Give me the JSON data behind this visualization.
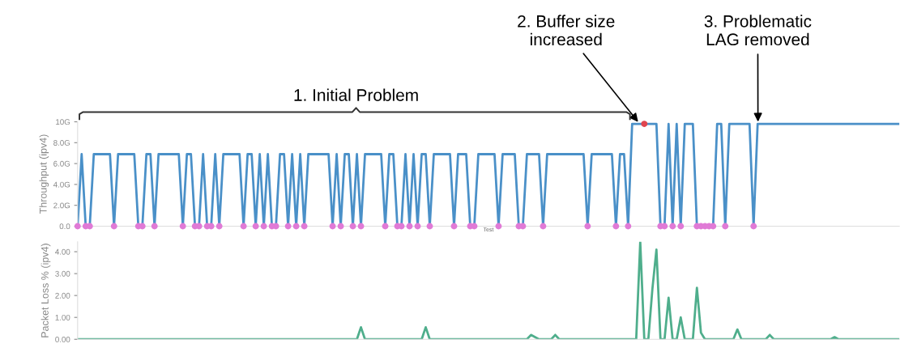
{
  "chart_data": [
    {
      "type": "line",
      "ylabel": "Throughput (ipv4)",
      "xlabel": "Test",
      "ylim": [
        0,
        10
      ],
      "tick_labels": "y",
      "legend": false,
      "yticks": [
        {
          "value": 0,
          "label": "0.0"
        },
        {
          "value": 2,
          "label": "2.0G"
        },
        {
          "value": 4,
          "label": "4.0G"
        },
        {
          "value": 6,
          "label": "6.0G"
        },
        {
          "value": 8,
          "label": "8.0G"
        },
        {
          "value": 10,
          "label": "10G"
        }
      ],
      "annotations": [
        "1. Initial Problem",
        "2. Buffer size\nincreased",
        "3. Problematic\nLAG removed"
      ],
      "categories": [
        null,
        null,
        null,
        null,
        null,
        null,
        null,
        null,
        null,
        null,
        null,
        null,
        null,
        null,
        null,
        null,
        null,
        null,
        null,
        null,
        null,
        null,
        null,
        null,
        null,
        null,
        null,
        null,
        null,
        null,
        null,
        null,
        null,
        null,
        null,
        null,
        null,
        null,
        null,
        null,
        null,
        null,
        null,
        null,
        null,
        null,
        null,
        null,
        null,
        null,
        null,
        null,
        null,
        null,
        null,
        null,
        null,
        null,
        null,
        null,
        null,
        null,
        null,
        null,
        null,
        null,
        null,
        null,
        null,
        null,
        null,
        null,
        null,
        null,
        null,
        null,
        null,
        null,
        null,
        null,
        null,
        null,
        null,
        null,
        null,
        null,
        null,
        null,
        null,
        null,
        null,
        null,
        null,
        null,
        null,
        null,
        null,
        null,
        null,
        null,
        null,
        null,
        null,
        null,
        null,
        null,
        null,
        null,
        null,
        null,
        null,
        null,
        null,
        null,
        null,
        null,
        null,
        null,
        null,
        null,
        null,
        null,
        null,
        null,
        null,
        null,
        null,
        null,
        null,
        null,
        null,
        null,
        null,
        null,
        null,
        null,
        null,
        null,
        null,
        null,
        null,
        null,
        null,
        null,
        null,
        null,
        null,
        null,
        null,
        null,
        null,
        null,
        null,
        null,
        null,
        null,
        null,
        null,
        null,
        null,
        null,
        null,
        null,
        null,
        null,
        null,
        null,
        null,
        null,
        null,
        null,
        null,
        null,
        null,
        null,
        null,
        null,
        null,
        null,
        null,
        null,
        null,
        null,
        null,
        null,
        null,
        null,
        null,
        null,
        null,
        null,
        null,
        null,
        null,
        null,
        null,
        null,
        null,
        null,
        null,
        null,
        null,
        null,
        null
      ],
      "series": [
        {
          "color": "#4a90c8",
          "values": [
            0,
            6.9,
            0,
            0,
            6.9,
            6.9,
            6.9,
            6.9,
            6.9,
            0,
            6.9,
            6.9,
            6.9,
            6.9,
            6.9,
            0,
            0,
            6.9,
            6.9,
            0,
            6.9,
            6.9,
            6.9,
            6.9,
            6.9,
            6.9,
            0,
            6.9,
            6.9,
            0,
            0,
            6.9,
            0,
            0,
            6.9,
            0,
            6.9,
            6.9,
            6.9,
            6.9,
            6.9,
            0,
            6.9,
            6.9,
            0,
            6.9,
            0,
            6.9,
            0,
            0,
            6.9,
            6.9,
            0,
            6.9,
            0,
            6.9,
            0,
            6.9,
            6.9,
            6.9,
            6.9,
            6.9,
            6.9,
            0,
            6.9,
            0,
            6.9,
            6.9,
            0,
            6.9,
            0,
            6.9,
            6.9,
            6.9,
            6.9,
            6.9,
            0,
            6.9,
            6.9,
            0,
            0,
            6.9,
            0,
            6.9,
            0,
            6.9,
            6.9,
            0,
            6.9,
            6.9,
            6.9,
            6.9,
            6.9,
            0,
            6.9,
            6.9,
            6.9,
            0,
            0,
            6.9,
            6.9,
            6.9,
            6.9,
            6.9,
            0,
            6.9,
            6.9,
            6.9,
            6.9,
            0,
            0,
            6.9,
            6.9,
            6.9,
            6.9,
            0,
            6.9,
            6.9,
            6.9,
            6.9,
            6.9,
            6.9,
            6.9,
            6.9,
            6.9,
            6.9,
            0,
            6.9,
            6.9,
            6.9,
            6.9,
            6.9,
            6.9,
            0,
            6.9,
            6.9,
            0,
            9.8,
            9.8,
            9.8,
            9.8,
            9.8,
            9.8,
            9.8,
            0,
            0,
            9.8,
            0,
            9.8,
            0,
            9.8,
            9.8,
            9.8,
            0,
            0,
            0,
            0,
            0,
            9.8,
            9.8,
            0,
            9.8,
            9.8,
            9.8,
            9.8,
            9.8,
            9.8,
            0,
            9.8,
            9.8,
            9.8,
            9.8,
            9.8,
            9.8,
            9.8,
            9.8,
            9.8,
            9.8,
            9.8,
            9.8,
            9.8,
            9.8,
            9.8,
            9.8,
            9.8,
            9.8,
            9.8,
            9.8,
            9.8,
            9.8,
            9.8,
            9.8,
            9.8,
            9.8,
            9.8,
            9.8,
            9.8,
            9.8,
            9.8,
            9.8,
            9.8,
            9.8,
            9.8,
            9.8
          ]
        },
        {
          "type": "scatter",
          "color": "#e07ad6",
          "marker": "circle",
          "values": [
            0,
            null,
            0,
            0,
            null,
            null,
            null,
            null,
            null,
            0,
            null,
            null,
            null,
            null,
            null,
            0,
            0,
            null,
            null,
            0,
            null,
            null,
            null,
            null,
            null,
            null,
            0,
            null,
            null,
            0,
            0,
            null,
            0,
            0,
            null,
            0,
            null,
            null,
            null,
            null,
            null,
            0,
            null,
            null,
            0,
            null,
            0,
            null,
            0,
            0,
            null,
            null,
            0,
            null,
            0,
            null,
            0,
            null,
            null,
            null,
            null,
            null,
            null,
            0,
            null,
            0,
            null,
            null,
            0,
            null,
            0,
            null,
            null,
            null,
            null,
            null,
            0,
            null,
            null,
            0,
            0,
            null,
            0,
            null,
            0,
            null,
            null,
            0,
            null,
            null,
            null,
            null,
            null,
            0,
            null,
            null,
            null,
            0,
            0,
            null,
            null,
            null,
            null,
            null,
            0,
            null,
            null,
            null,
            null,
            0,
            0,
            null,
            null,
            null,
            null,
            0,
            null,
            null,
            null,
            null,
            null,
            null,
            null,
            null,
            null,
            null,
            0,
            null,
            null,
            null,
            null,
            null,
            null,
            0,
            null,
            null,
            0,
            null,
            null,
            null,
            null,
            null,
            null,
            null,
            0,
            0,
            null,
            0,
            null,
            0,
            null,
            null,
            null,
            0,
            0,
            0,
            0,
            0,
            null,
            null,
            0,
            null,
            null,
            null,
            null,
            null,
            null,
            0,
            null,
            null,
            null,
            null,
            null,
            null,
            null,
            null,
            null,
            null,
            null,
            null,
            null,
            null,
            null,
            null,
            null,
            null,
            null,
            null,
            null,
            null,
            null,
            null,
            null,
            null,
            null,
            null,
            null,
            null,
            null,
            null,
            null,
            null,
            null,
            null
          ]
        },
        {
          "type": "scatter",
          "color": "#e0454f",
          "marker": "circle",
          "values": [
            null,
            null,
            null,
            null,
            null,
            null,
            null,
            null,
            null,
            null,
            null,
            null,
            null,
            null,
            null,
            null,
            null,
            null,
            null,
            null,
            null,
            null,
            null,
            null,
            null,
            null,
            null,
            null,
            null,
            null,
            null,
            null,
            null,
            null,
            null,
            null,
            null,
            null,
            null,
            null,
            null,
            null,
            null,
            null,
            null,
            null,
            null,
            null,
            null,
            null,
            null,
            null,
            null,
            null,
            null,
            null,
            null,
            null,
            null,
            null,
            null,
            null,
            null,
            null,
            null,
            null,
            null,
            null,
            null,
            null,
            null,
            null,
            null,
            null,
            null,
            null,
            null,
            null,
            null,
            null,
            null,
            null,
            null,
            null,
            null,
            null,
            null,
            null,
            null,
            null,
            null,
            null,
            null,
            null,
            null,
            null,
            null,
            null,
            null,
            null,
            null,
            null,
            null,
            null,
            null,
            null,
            null,
            null,
            null,
            null,
            null,
            null,
            null,
            null,
            null,
            null,
            null,
            null,
            null,
            null,
            null,
            null,
            null,
            null,
            null,
            null,
            null,
            null,
            null,
            null,
            null,
            null,
            null,
            null,
            null,
            null,
            null,
            null,
            null,
            null,
            9.8,
            null,
            null,
            null,
            null,
            null,
            null,
            null,
            null,
            null,
            null,
            null,
            null,
            null,
            null,
            null,
            null,
            null,
            null,
            null,
            null,
            null,
            null,
            null,
            null,
            null,
            null,
            null,
            null,
            null,
            null,
            null,
            null,
            null,
            null,
            null,
            null,
            null,
            null,
            null,
            null,
            null,
            null,
            null,
            null,
            null,
            null,
            null,
            null,
            null,
            null,
            null,
            null,
            null,
            null,
            null,
            null,
            null,
            null,
            null,
            null,
            null,
            null,
            null
          ]
        }
      ]
    },
    {
      "type": "line",
      "ylabel": "Packet Loss % (ipv4)",
      "ylim": [
        0,
        4.45
      ],
      "tick_labels": "y",
      "legend": false,
      "yticks": [
        {
          "value": 0,
          "label": "0.00"
        },
        {
          "value": 1,
          "label": "1.00"
        },
        {
          "value": 2,
          "label": "2.00"
        },
        {
          "value": 3,
          "label": "3.00"
        },
        {
          "value": 4,
          "label": "4.00"
        }
      ],
      "categories": [
        null,
        null,
        null,
        null,
        null,
        null,
        null,
        null,
        null,
        null,
        null,
        null,
        null,
        null,
        null,
        null,
        null,
        null,
        null,
        null,
        null,
        null,
        null,
        null,
        null,
        null,
        null,
        null,
        null,
        null,
        null,
        null,
        null,
        null,
        null,
        null,
        null,
        null,
        null,
        null,
        null,
        null,
        null,
        null,
        null,
        null,
        null,
        null,
        null,
        null,
        null,
        null,
        null,
        null,
        null,
        null,
        null,
        null,
        null,
        null,
        null,
        null,
        null,
        null,
        null,
        null,
        null,
        null,
        null,
        null,
        null,
        null,
        null,
        null,
        null,
        null,
        null,
        null,
        null,
        null,
        null,
        null,
        null,
        null,
        null,
        null,
        null,
        null,
        null,
        null,
        null,
        null,
        null,
        null,
        null,
        null,
        null,
        null,
        null,
        null,
        null,
        null,
        null,
        null,
        null,
        null,
        null,
        null,
        null,
        null,
        null,
        null,
        null,
        null,
        null,
        null,
        null,
        null,
        null,
        null,
        null,
        null,
        null,
        null,
        null,
        null,
        null,
        null,
        null,
        null,
        null,
        null,
        null,
        null,
        null,
        null,
        null,
        null,
        null,
        null,
        null,
        null,
        null,
        null,
        null,
        null,
        null,
        null,
        null,
        null,
        null,
        null,
        null,
        null,
        null,
        null,
        null,
        null,
        null,
        null,
        null,
        null,
        null,
        null,
        null,
        null,
        null,
        null,
        null,
        null,
        null,
        null,
        null,
        null,
        null,
        null,
        null,
        null,
        null,
        null,
        null,
        null,
        null,
        null,
        null,
        null,
        null,
        null,
        null,
        null,
        null,
        null,
        null,
        null,
        null,
        null,
        null,
        null,
        null,
        null,
        null,
        null,
        null,
        null
      ],
      "series": [
        {
          "color": "#4fae8c",
          "values": [
            0,
            0,
            0,
            0,
            0,
            0,
            0,
            0,
            0,
            0,
            0,
            0,
            0,
            0,
            0,
            0,
            0,
            0,
            0,
            0,
            0,
            0,
            0,
            0,
            0,
            0,
            0,
            0,
            0,
            0,
            0,
            0,
            0,
            0,
            0,
            0,
            0,
            0,
            0,
            0,
            0,
            0,
            0,
            0,
            0,
            0,
            0,
            0,
            0,
            0,
            0,
            0,
            0,
            0,
            0,
            0,
            0,
            0,
            0,
            0,
            0,
            0,
            0,
            0,
            0,
            0,
            0,
            0,
            0,
            0,
            0.55,
            0,
            0,
            0,
            0,
            0,
            0,
            0,
            0,
            0,
            0,
            0,
            0,
            0,
            0,
            0,
            0.55,
            0,
            0,
            0,
            0,
            0,
            0,
            0,
            0,
            0,
            0,
            0,
            0,
            0,
            0,
            0,
            0,
            0,
            0,
            0,
            0,
            0,
            0,
            0,
            0,
            0,
            0.2,
            0.1,
            0,
            0,
            0,
            0,
            0.2,
            0,
            0,
            0,
            0,
            0,
            0,
            0,
            0,
            0,
            0,
            0,
            0,
            0,
            0,
            0,
            0,
            0,
            0,
            0,
            0,
            4.45,
            0,
            0,
            2.3,
            4.1,
            0,
            0,
            1.9,
            0,
            0,
            1.0,
            0,
            0,
            0,
            2.35,
            0.3,
            0,
            0,
            0,
            0,
            0,
            0,
            0,
            0,
            0.45,
            0,
            0,
            0,
            0,
            0,
            0,
            0,
            0.2,
            0,
            0,
            0,
            0,
            0,
            0,
            0,
            0,
            0,
            0,
            0,
            0,
            0,
            0,
            0,
            0.1,
            0,
            0,
            0,
            0,
            0,
            0,
            0,
            0,
            0,
            0,
            0,
            0,
            0,
            0,
            0,
            0
          ]
        }
      ]
    }
  ]
}
